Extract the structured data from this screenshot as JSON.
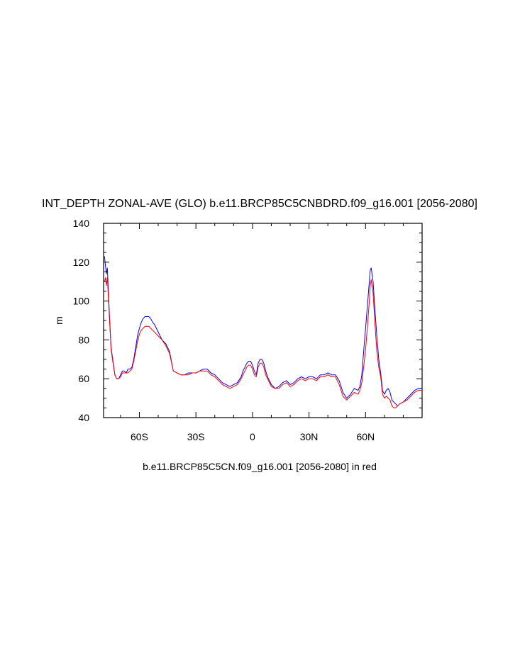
{
  "chart_data": {
    "type": "line",
    "title": "INT_DEPTH ZONAL-AVE (GLO) b.e11.BRCP85C5CNBDRD.f09_g16.001 [2056-2080]",
    "xlabel": "b.e11.BRCP85C5CN.f09_g16.001 [2056-2080] in red",
    "ylabel": "m",
    "xlim": [
      -79,
      90
    ],
    "ylim": [
      40,
      140
    ],
    "x_ticks": [
      {
        "value": -60,
        "label": "60S"
      },
      {
        "value": -30,
        "label": "30S"
      },
      {
        "value": 0,
        "label": "0"
      },
      {
        "value": 30,
        "label": "30N"
      },
      {
        "value": 60,
        "label": "60N"
      }
    ],
    "y_ticks": [
      40,
      60,
      80,
      100,
      120,
      140
    ],
    "grid": false,
    "series": [
      {
        "color": "#0000ff",
        "x": [
          -78.5,
          -78,
          -77.5,
          -77,
          -76,
          -75,
          -74,
          -73,
          -72,
          -71,
          -70,
          -69,
          -68,
          -67,
          -66,
          -65,
          -64,
          -63,
          -62,
          -61,
          -60,
          -59,
          -58,
          -57,
          -56,
          -55,
          -54,
          -53,
          -52,
          -51,
          -50,
          -48,
          -46,
          -44,
          -42,
          -40,
          -38,
          -36,
          -34,
          -32,
          -30,
          -28,
          -26,
          -24,
          -22,
          -20,
          -18,
          -16,
          -14,
          -12,
          -10,
          -8,
          -6,
          -5,
          -4,
          -3,
          -2,
          -1,
          0,
          1,
          2,
          3,
          4,
          5,
          6,
          7,
          8,
          10,
          12,
          14,
          16,
          18,
          20,
          22,
          24,
          26,
          28,
          30,
          32,
          34,
          36,
          38,
          40,
          42,
          44,
          46,
          48,
          50,
          52,
          54,
          56,
          57,
          58,
          59,
          60,
          61,
          62,
          62.5,
          63,
          64,
          65,
          66,
          67,
          68,
          69,
          70,
          71,
          72,
          73,
          74,
          75,
          76,
          77,
          78,
          80,
          82,
          84,
          86,
          88,
          90
        ],
        "y": [
          123,
          118,
          114,
          117,
          95,
          76,
          69,
          62,
          60,
          60,
          62,
          64,
          64,
          63,
          65,
          65,
          66,
          70,
          76,
          82,
          86,
          89,
          91,
          92,
          92,
          92,
          91,
          89,
          88,
          86,
          84,
          80,
          78,
          74,
          64,
          63,
          62,
          62,
          63,
          63,
          63,
          64,
          65,
          65,
          63,
          62,
          60,
          58,
          57,
          56,
          57,
          58,
          61,
          64,
          66,
          68,
          69,
          69,
          67,
          64,
          62,
          68,
          70,
          70,
          68,
          64,
          61,
          57,
          55,
          56,
          58,
          59,
          57,
          58,
          60,
          61,
          60,
          61,
          61,
          60,
          62,
          62,
          63,
          62,
          62,
          59,
          53,
          50,
          52,
          55,
          54,
          56,
          62,
          74,
          86,
          98,
          110,
          116,
          117,
          110,
          95,
          82,
          70,
          63,
          54,
          52,
          54,
          55,
          53,
          49,
          48,
          47,
          46,
          47,
          48,
          50,
          52,
          54,
          55,
          55
        ]
      },
      {
        "color": "#ff0000",
        "x": [
          -78.5,
          -78,
          -77.5,
          -77,
          -76,
          -75,
          -74,
          -73,
          -72,
          -71,
          -70,
          -69,
          -68,
          -67,
          -66,
          -65,
          -64,
          -63,
          -62,
          -61,
          -60,
          -59,
          -58,
          -57,
          -56,
          -55,
          -54,
          -53,
          -52,
          -51,
          -50,
          -48,
          -46,
          -44,
          -42,
          -40,
          -38,
          -36,
          -34,
          -32,
          -30,
          -28,
          -26,
          -24,
          -22,
          -20,
          -18,
          -16,
          -14,
          -12,
          -10,
          -8,
          -6,
          -5,
          -4,
          -3,
          -2,
          -1,
          0,
          1,
          2,
          3,
          4,
          5,
          6,
          7,
          8,
          10,
          12,
          14,
          16,
          18,
          20,
          22,
          24,
          26,
          28,
          30,
          32,
          34,
          36,
          38,
          40,
          42,
          44,
          46,
          48,
          50,
          52,
          54,
          56,
          57,
          58,
          59,
          60,
          61,
          62,
          62.5,
          63,
          64,
          65,
          66,
          67,
          68,
          69,
          70,
          71,
          72,
          73,
          74,
          75,
          76,
          77,
          78,
          80,
          82,
          84,
          86,
          88,
          90
        ],
        "y": [
          110,
          112,
          108,
          112,
          93,
          75,
          68,
          62,
          60,
          60,
          61,
          63,
          63,
          63,
          63,
          64,
          65,
          69,
          74,
          79,
          83,
          85,
          86,
          87,
          87,
          87,
          86,
          85,
          84,
          83,
          82,
          80,
          77,
          73,
          64,
          63,
          62,
          62,
          62,
          63,
          63,
          64,
          64,
          64,
          62,
          61,
          59,
          57,
          56,
          55,
          56,
          57,
          60,
          62,
          64,
          66,
          67,
          67,
          65,
          62,
          61,
          66,
          68,
          68,
          66,
          62,
          60,
          56,
          55,
          55,
          57,
          58,
          56,
          57,
          59,
          60,
          59,
          60,
          60,
          59,
          61,
          61,
          62,
          61,
          61,
          57,
          51,
          49,
          51,
          53,
          52,
          54,
          58,
          66,
          75,
          87,
          100,
          108,
          111,
          104,
          88,
          74,
          66,
          61,
          52,
          50,
          51,
          50,
          49,
          46,
          45,
          45,
          46,
          47,
          48,
          49,
          51,
          53,
          54,
          54
        ]
      }
    ]
  }
}
